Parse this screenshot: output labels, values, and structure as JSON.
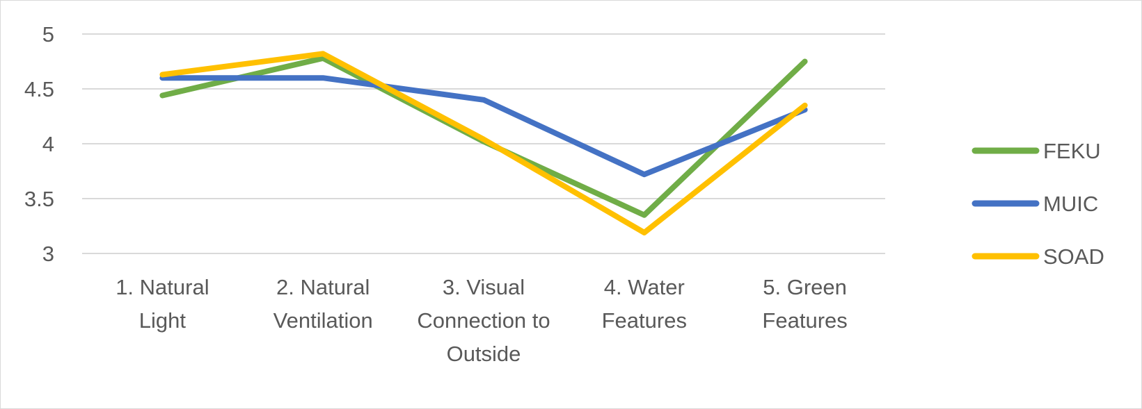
{
  "chart_data": {
    "type": "line",
    "title": "",
    "xlabel": "",
    "ylabel": "",
    "ylim": [
      3,
      5
    ],
    "yticks": [
      3,
      3.5,
      4,
      4.5,
      5
    ],
    "ytick_labels": [
      "3",
      "3.5",
      "4",
      "4.5",
      "5"
    ],
    "grid": true,
    "legend_position": "right",
    "categories": [
      [
        "1. Natural",
        "Light"
      ],
      [
        "2. Natural",
        "Ventilation"
      ],
      [
        "3. Visual",
        "Connection to",
        "Outside"
      ],
      [
        "4. Water",
        "Features"
      ],
      [
        "5. Green",
        "Features"
      ]
    ],
    "series": [
      {
        "name": "FEKU",
        "color": "#70ad47",
        "values": [
          4.44,
          4.78,
          4.02,
          3.35,
          4.75
        ]
      },
      {
        "name": "MUIC",
        "color": "#4472c4",
        "values": [
          4.6,
          4.6,
          4.4,
          3.72,
          4.31
        ]
      },
      {
        "name": "SOAD",
        "color": "#ffc000",
        "values": [
          4.63,
          4.82,
          4.04,
          3.19,
          4.35
        ]
      }
    ]
  }
}
